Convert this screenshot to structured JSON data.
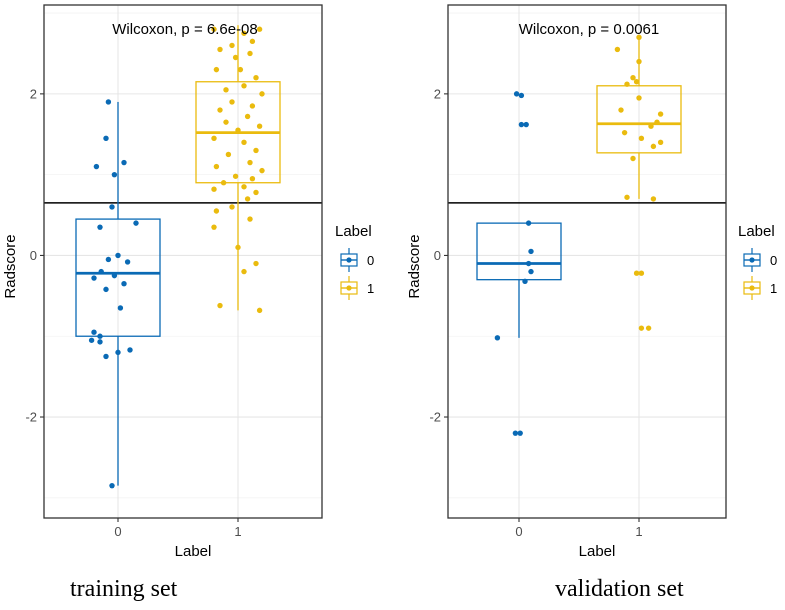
{
  "panels": [
    {
      "caption": "training set",
      "annotation": "Wilcoxon, p = 6.6e-08",
      "xlabel": "Label",
      "ylabel": "Radscore",
      "legend_title": "Label",
      "cutoff": 0.65
    },
    {
      "caption": "validation set",
      "annotation": "Wilcoxon, p = 0.0061",
      "xlabel": "Label",
      "ylabel": "Radscore",
      "legend_title": "Label",
      "cutoff": 0.65
    }
  ],
  "colors": {
    "label0": "#0a6ab5",
    "label1": "#eabb0e",
    "grid_major": "#e6e6e6",
    "grid_minor": "#f3f3f3"
  },
  "chart_data": [
    {
      "type": "boxplot",
      "title": "training set",
      "xlabel": "Label",
      "ylabel": "Radscore",
      "annotation": "Wilcoxon, p = 6.6e-08",
      "categories": [
        "0",
        "1"
      ],
      "ylim": [
        -3.25,
        3.1
      ],
      "yticks": [
        -2,
        0,
        2
      ],
      "hline": 0.65,
      "legend": {
        "title": "Label",
        "entries": [
          "0",
          "1"
        ],
        "position": "right"
      },
      "boxes": [
        {
          "label": "0",
          "whisker_low": -2.85,
          "q1": -1.0,
          "median": -0.22,
          "q3": 0.45,
          "whisker_high": 1.9
        },
        {
          "label": "1",
          "whisker_low": -0.68,
          "q1": 0.9,
          "median": 1.52,
          "q3": 2.15,
          "whisker_high": 2.85
        }
      ],
      "points": [
        {
          "label": "0",
          "jitter": -0.08,
          "y": 1.9
        },
        {
          "label": "0",
          "jitter": -0.1,
          "y": 1.45
        },
        {
          "label": "0",
          "jitter": -0.18,
          "y": 1.1
        },
        {
          "label": "0",
          "jitter": 0.05,
          "y": 1.15
        },
        {
          "label": "0",
          "jitter": -0.03,
          "y": 1.0
        },
        {
          "label": "0",
          "jitter": -0.05,
          "y": 0.6
        },
        {
          "label": "0",
          "jitter": 0.15,
          "y": 0.4
        },
        {
          "label": "0",
          "jitter": -0.15,
          "y": 0.35
        },
        {
          "label": "0",
          "jitter": 0.0,
          "y": 0.0
        },
        {
          "label": "0",
          "jitter": -0.08,
          "y": -0.05
        },
        {
          "label": "0",
          "jitter": 0.08,
          "y": -0.08
        },
        {
          "label": "0",
          "jitter": -0.14,
          "y": -0.2
        },
        {
          "label": "0",
          "jitter": -0.03,
          "y": -0.25
        },
        {
          "label": "0",
          "jitter": -0.2,
          "y": -0.28
        },
        {
          "label": "0",
          "jitter": 0.05,
          "y": -0.35
        },
        {
          "label": "0",
          "jitter": -0.1,
          "y": -0.42
        },
        {
          "label": "0",
          "jitter": 0.02,
          "y": -0.65
        },
        {
          "label": "0",
          "jitter": -0.2,
          "y": -0.95
        },
        {
          "label": "0",
          "jitter": -0.15,
          "y": -1.0
        },
        {
          "label": "0",
          "jitter": -0.22,
          "y": -1.05
        },
        {
          "label": "0",
          "jitter": -0.15,
          "y": -1.07
        },
        {
          "label": "0",
          "jitter": 0.1,
          "y": -1.17
        },
        {
          "label": "0",
          "jitter": 0.0,
          "y": -1.2
        },
        {
          "label": "0",
          "jitter": -0.1,
          "y": -1.25
        },
        {
          "label": "0",
          "jitter": -0.05,
          "y": -2.85
        },
        {
          "label": "1",
          "jitter": -0.2,
          "y": 2.8
        },
        {
          "label": "1",
          "jitter": 0.05,
          "y": 2.75
        },
        {
          "label": "1",
          "jitter": 0.18,
          "y": 2.8
        },
        {
          "label": "1",
          "jitter": 0.12,
          "y": 2.65
        },
        {
          "label": "1",
          "jitter": -0.05,
          "y": 2.6
        },
        {
          "label": "1",
          "jitter": -0.15,
          "y": 2.55
        },
        {
          "label": "1",
          "jitter": 0.1,
          "y": 2.5
        },
        {
          "label": "1",
          "jitter": -0.02,
          "y": 2.45
        },
        {
          "label": "1",
          "jitter": 0.02,
          "y": 2.3
        },
        {
          "label": "1",
          "jitter": -0.18,
          "y": 2.3
        },
        {
          "label": "1",
          "jitter": 0.15,
          "y": 2.2
        },
        {
          "label": "1",
          "jitter": 0.05,
          "y": 2.1
        },
        {
          "label": "1",
          "jitter": -0.1,
          "y": 2.05
        },
        {
          "label": "1",
          "jitter": 0.2,
          "y": 2.0
        },
        {
          "label": "1",
          "jitter": -0.05,
          "y": 1.9
        },
        {
          "label": "1",
          "jitter": 0.12,
          "y": 1.85
        },
        {
          "label": "1",
          "jitter": -0.15,
          "y": 1.8
        },
        {
          "label": "1",
          "jitter": 0.08,
          "y": 1.72
        },
        {
          "label": "1",
          "jitter": -0.1,
          "y": 1.65
        },
        {
          "label": "1",
          "jitter": 0.18,
          "y": 1.6
        },
        {
          "label": "1",
          "jitter": 0.0,
          "y": 1.55
        },
        {
          "label": "1",
          "jitter": -0.2,
          "y": 1.45
        },
        {
          "label": "1",
          "jitter": 0.05,
          "y": 1.4
        },
        {
          "label": "1",
          "jitter": 0.15,
          "y": 1.3
        },
        {
          "label": "1",
          "jitter": -0.08,
          "y": 1.25
        },
        {
          "label": "1",
          "jitter": 0.1,
          "y": 1.15
        },
        {
          "label": "1",
          "jitter": -0.18,
          "y": 1.1
        },
        {
          "label": "1",
          "jitter": 0.2,
          "y": 1.05
        },
        {
          "label": "1",
          "jitter": -0.02,
          "y": 0.98
        },
        {
          "label": "1",
          "jitter": 0.12,
          "y": 0.95
        },
        {
          "label": "1",
          "jitter": -0.12,
          "y": 0.9
        },
        {
          "label": "1",
          "jitter": 0.05,
          "y": 0.85
        },
        {
          "label": "1",
          "jitter": -0.2,
          "y": 0.82
        },
        {
          "label": "1",
          "jitter": 0.15,
          "y": 0.78
        },
        {
          "label": "1",
          "jitter": 0.08,
          "y": 0.7
        },
        {
          "label": "1",
          "jitter": -0.05,
          "y": 0.6
        },
        {
          "label": "1",
          "jitter": -0.18,
          "y": 0.55
        },
        {
          "label": "1",
          "jitter": 0.1,
          "y": 0.45
        },
        {
          "label": "1",
          "jitter": -0.2,
          "y": 0.35
        },
        {
          "label": "1",
          "jitter": 0.0,
          "y": 0.1
        },
        {
          "label": "1",
          "jitter": 0.15,
          "y": -0.1
        },
        {
          "label": "1",
          "jitter": 0.05,
          "y": -0.2
        },
        {
          "label": "1",
          "jitter": -0.15,
          "y": -0.62
        },
        {
          "label": "1",
          "jitter": 0.18,
          "y": -0.68
        }
      ]
    },
    {
      "type": "boxplot",
      "title": "validation set",
      "xlabel": "Label",
      "ylabel": "Radscore",
      "annotation": "Wilcoxon, p = 0.0061",
      "categories": [
        "0",
        "1"
      ],
      "ylim": [
        -3.25,
        3.1
      ],
      "yticks": [
        -2,
        0,
        2
      ],
      "hline": 0.65,
      "legend": {
        "title": "Label",
        "entries": [
          "0",
          "1"
        ],
        "position": "right"
      },
      "boxes": [
        {
          "label": "0",
          "whisker_low": -1.02,
          "q1": -0.3,
          "median": -0.1,
          "q3": 0.4,
          "whisker_high": 0.4
        },
        {
          "label": "1",
          "whisker_low": 0.7,
          "q1": 1.27,
          "median": 1.63,
          "q3": 2.1,
          "whisker_high": 2.7
        }
      ],
      "points": [
        {
          "label": "0",
          "jitter": -0.02,
          "y": 2.0
        },
        {
          "label": "0",
          "jitter": 0.02,
          "y": 1.98
        },
        {
          "label": "0",
          "jitter": 0.02,
          "y": 1.62
        },
        {
          "label": "0",
          "jitter": 0.06,
          "y": 1.62
        },
        {
          "label": "0",
          "jitter": 0.08,
          "y": 0.4
        },
        {
          "label": "0",
          "jitter": 0.1,
          "y": 0.05
        },
        {
          "label": "0",
          "jitter": 0.08,
          "y": -0.1
        },
        {
          "label": "0",
          "jitter": 0.1,
          "y": -0.2
        },
        {
          "label": "0",
          "jitter": 0.05,
          "y": -0.32
        },
        {
          "label": "0",
          "jitter": -0.18,
          "y": -1.02
        },
        {
          "label": "0",
          "jitter": -0.03,
          "y": -2.2
        },
        {
          "label": "0",
          "jitter": 0.01,
          "y": -2.2
        },
        {
          "label": "1",
          "jitter": 0.0,
          "y": 2.7
        },
        {
          "label": "1",
          "jitter": -0.18,
          "y": 2.55
        },
        {
          "label": "1",
          "jitter": 0.0,
          "y": 2.4
        },
        {
          "label": "1",
          "jitter": -0.05,
          "y": 2.2
        },
        {
          "label": "1",
          "jitter": -0.1,
          "y": 2.12
        },
        {
          "label": "1",
          "jitter": -0.02,
          "y": 2.15
        },
        {
          "label": "1",
          "jitter": 0.0,
          "y": 1.95
        },
        {
          "label": "1",
          "jitter": -0.15,
          "y": 1.8
        },
        {
          "label": "1",
          "jitter": 0.18,
          "y": 1.75
        },
        {
          "label": "1",
          "jitter": 0.15,
          "y": 1.65
        },
        {
          "label": "1",
          "jitter": 0.1,
          "y": 1.6
        },
        {
          "label": "1",
          "jitter": -0.12,
          "y": 1.52
        },
        {
          "label": "1",
          "jitter": 0.02,
          "y": 1.45
        },
        {
          "label": "1",
          "jitter": 0.18,
          "y": 1.4
        },
        {
          "label": "1",
          "jitter": 0.12,
          "y": 1.35
        },
        {
          "label": "1",
          "jitter": -0.05,
          "y": 1.2
        },
        {
          "label": "1",
          "jitter": -0.1,
          "y": 0.72
        },
        {
          "label": "1",
          "jitter": 0.12,
          "y": 0.7
        },
        {
          "label": "1",
          "jitter": -0.02,
          "y": -0.22
        },
        {
          "label": "1",
          "jitter": 0.02,
          "y": -0.22
        },
        {
          "label": "1",
          "jitter": 0.02,
          "y": -0.9
        },
        {
          "label": "1",
          "jitter": 0.08,
          "y": -0.9
        }
      ]
    }
  ]
}
